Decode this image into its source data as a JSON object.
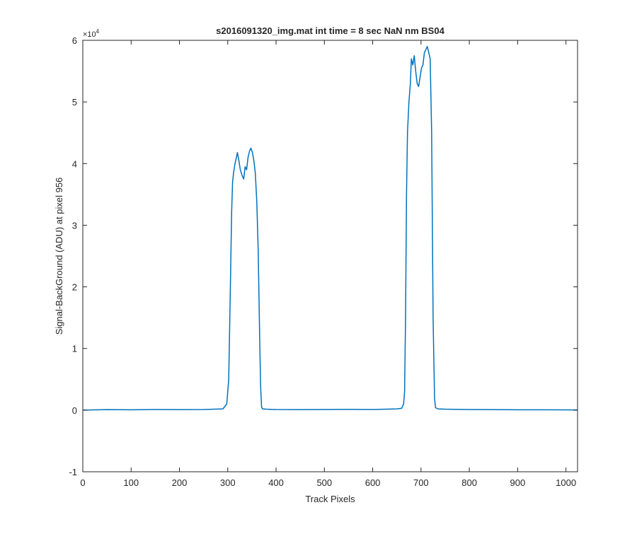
{
  "chart_data": {
    "type": "line",
    "title": "s2016091320_img.mat int time = 8 sec  NaN nm BS04",
    "xlabel": "Track Pixels",
    "ylabel": "Signal-BackGround (ADU) at pixel 956",
    "xlim": [
      0,
      1024
    ],
    "ylim": [
      -10000,
      60000
    ],
    "xticks": [
      0,
      100,
      200,
      300,
      400,
      500,
      600,
      700,
      800,
      900,
      1000
    ],
    "yticks": [
      -10000,
      0,
      10000,
      20000,
      30000,
      40000,
      50000,
      60000
    ],
    "ytick_labels": [
      "-1",
      "0",
      "1",
      "2",
      "3",
      "4",
      "5",
      "6"
    ],
    "y_exponent_label": "×10",
    "y_exponent_power": "4",
    "grid": false,
    "series": [
      {
        "color": "#0072bd",
        "x": [
          0,
          50,
          100,
          150,
          200,
          250,
          290,
          298,
          302,
          305,
          308,
          310,
          312,
          315,
          318,
          320,
          323,
          326,
          330,
          333,
          336,
          339,
          342,
          345,
          348,
          351,
          354,
          357,
          360,
          363,
          366,
          368,
          370,
          372,
          380,
          400,
          450,
          500,
          550,
          600,
          650,
          660,
          664,
          666,
          668,
          670,
          672,
          675,
          678,
          680,
          683,
          686,
          689,
          692,
          695,
          698,
          701,
          704,
          707,
          710,
          713,
          716,
          719,
          722,
          725,
          728,
          730,
          735,
          750,
          800,
          850,
          900,
          950,
          1000,
          1024
        ],
        "y": [
          0,
          80,
          60,
          100,
          80,
          100,
          200,
          1000,
          5000,
          18000,
          32000,
          37000,
          38500,
          40000,
          41000,
          41800,
          40500,
          39000,
          38000,
          37500,
          39500,
          39000,
          41000,
          42000,
          42500,
          41800,
          40500,
          38500,
          34000,
          26000,
          12000,
          4000,
          500,
          200,
          150,
          100,
          80,
          100,
          120,
          100,
          200,
          300,
          1000,
          3000,
          15000,
          35000,
          45000,
          50000,
          53000,
          57000,
          56000,
          57500,
          55000,
          53000,
          52500,
          54000,
          55500,
          56000,
          58000,
          58500,
          59000,
          58000,
          57000,
          45000,
          15000,
          2000,
          400,
          200,
          150,
          100,
          80,
          60,
          50,
          40,
          20
        ]
      }
    ]
  }
}
